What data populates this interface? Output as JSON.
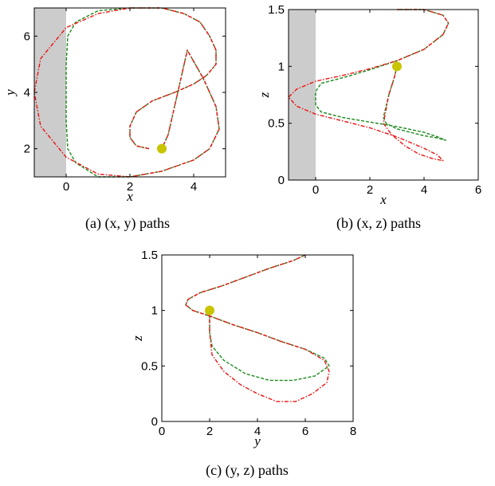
{
  "captions": {
    "a": "(a) (x, y) paths",
    "b": "(b) (x, z) paths",
    "c": "(c) (y, z) paths"
  },
  "colors": {
    "green_series": "#1a8a1a",
    "red_series": "#ee1111",
    "obstacle": "#cccccc",
    "marker": "#c8c400"
  },
  "chart_data": [
    {
      "id": "a",
      "type": "line",
      "title": "",
      "xlabel": "x",
      "ylabel": "y",
      "xlim": [
        -1,
        5
      ],
      "ylim": [
        1,
        7
      ],
      "xticks": [
        0,
        2,
        4
      ],
      "yticks": [
        2,
        4,
        6
      ],
      "shaded_region": {
        "x": [
          -1,
          0
        ]
      },
      "marker": {
        "x": 3,
        "y": 2
      },
      "series": [
        {
          "style": "green-dashed",
          "x": [
            2.6,
            2.2,
            2.0,
            2.0,
            2.2,
            2.7,
            3.4,
            4.0,
            4.4,
            4.7,
            4.7,
            4.5,
            4.2,
            3.7,
            3.0,
            2.0,
            1.0,
            0.3,
            0.05,
            0,
            0,
            0.05,
            0.3,
            1.0,
            2.0,
            3.0,
            4.0,
            4.5,
            4.8,
            4.7,
            4.3,
            3.8,
            3.2,
            3.0
          ],
          "y": [
            2.0,
            2.1,
            2.4,
            2.8,
            3.3,
            3.7,
            4.0,
            4.3,
            4.6,
            5.0,
            5.5,
            6.0,
            6.5,
            6.8,
            7.0,
            7.0,
            6.9,
            6.5,
            6.0,
            5.0,
            3.0,
            2.0,
            1.5,
            1.0,
            1.0,
            1.2,
            1.6,
            2.0,
            2.7,
            3.5,
            4.5,
            5.5,
            2.5,
            2.0
          ]
        },
        {
          "style": "red-dashdot",
          "x": [
            2.6,
            2.2,
            2.0,
            2.0,
            2.2,
            2.7,
            3.4,
            4.0,
            4.4,
            4.7,
            4.7,
            4.5,
            4.2,
            3.7,
            3.0,
            2.0,
            1.0,
            0,
            -0.8,
            -1.0,
            -0.8,
            0,
            1.0,
            2.0,
            3.0,
            4.0,
            4.5,
            4.8,
            4.7,
            4.3,
            3.8,
            3.2,
            3.0
          ],
          "y": [
            2.0,
            2.1,
            2.4,
            2.8,
            3.3,
            3.7,
            4.0,
            4.3,
            4.6,
            5.0,
            5.5,
            6.0,
            6.5,
            6.8,
            7.0,
            7.0,
            6.8,
            6.3,
            5.2,
            4.0,
            2.8,
            1.7,
            1.1,
            1.0,
            1.2,
            1.6,
            2.0,
            2.7,
            3.5,
            4.5,
            5.5,
            2.5,
            2.0
          ]
        }
      ]
    },
    {
      "id": "b",
      "type": "line",
      "title": "",
      "xlabel": "x",
      "ylabel": "z",
      "xlim": [
        -1,
        6
      ],
      "ylim": [
        0,
        1.5
      ],
      "xticks": [
        0,
        2,
        4,
        6
      ],
      "yticks": [
        0,
        0.5,
        1,
        1.5
      ],
      "shaded_region": {
        "x": [
          -1,
          0
        ]
      },
      "marker": {
        "x": 3,
        "y": 1
      },
      "series": [
        {
          "style": "green-dashed",
          "x": [
            3.0,
            2.9,
            2.7,
            2.5,
            2.6,
            3.0,
            3.5,
            4.0,
            4.5,
            4.8,
            4.5,
            4.0,
            3.0,
            2.0,
            1.0,
            0.2,
            0,
            0,
            0.2,
            1.0,
            2.0,
            3.0,
            4.0,
            4.7,
            4.9,
            4.7,
            4.0,
            3.0
          ],
          "y": [
            1.0,
            0.9,
            0.75,
            0.55,
            0.5,
            0.45,
            0.42,
            0.39,
            0.37,
            0.35,
            0.38,
            0.42,
            0.47,
            0.51,
            0.55,
            0.6,
            0.66,
            0.78,
            0.85,
            0.9,
            0.97,
            1.05,
            1.15,
            1.28,
            1.38,
            1.45,
            1.5,
            1.5
          ]
        },
        {
          "style": "red-dashdot",
          "x": [
            3.0,
            2.9,
            2.7,
            2.5,
            2.8,
            3.3,
            3.8,
            4.3,
            4.7,
            4.5,
            4.0,
            3.0,
            2.0,
            1.0,
            0,
            -0.7,
            -1.0,
            -0.7,
            0,
            1.0,
            2.0,
            3.0,
            4.0,
            4.7,
            4.9,
            4.7,
            4.0,
            3.0
          ],
          "y": [
            1.0,
            0.9,
            0.75,
            0.5,
            0.4,
            0.3,
            0.23,
            0.19,
            0.17,
            0.22,
            0.28,
            0.38,
            0.46,
            0.52,
            0.58,
            0.65,
            0.73,
            0.8,
            0.87,
            0.92,
            0.98,
            1.05,
            1.15,
            1.28,
            1.38,
            1.45,
            1.5,
            1.5
          ]
        }
      ]
    },
    {
      "id": "c",
      "type": "line",
      "title": "",
      "xlabel": "y",
      "ylabel": "z",
      "xlim": [
        0,
        8
      ],
      "ylim": [
        0,
        1.5
      ],
      "xticks": [
        0,
        2,
        4,
        6,
        8
      ],
      "yticks": [
        0,
        0.5,
        1,
        1.5
      ],
      "shaded_region": null,
      "marker": {
        "x": 2,
        "y": 1
      },
      "series": [
        {
          "style": "green-dashed",
          "x": [
            2.0,
            2.0,
            2.0,
            2.1,
            2.6,
            3.5,
            4.5,
            5.5,
            6.4,
            7.0,
            6.8,
            6.0,
            5.0,
            4.0,
            3.0,
            2.0,
            1.3,
            1.0,
            1.1,
            1.6,
            2.5,
            3.5,
            4.5,
            5.5,
            6.0
          ],
          "y": [
            1.0,
            0.88,
            0.8,
            0.68,
            0.55,
            0.43,
            0.37,
            0.37,
            0.41,
            0.5,
            0.57,
            0.65,
            0.72,
            0.8,
            0.87,
            0.95,
            1.0,
            1.05,
            1.1,
            1.16,
            1.22,
            1.3,
            1.38,
            1.45,
            1.5
          ]
        },
        {
          "style": "red-dashdot",
          "x": [
            2.0,
            2.0,
            2.0,
            2.1,
            2.6,
            3.3,
            4.0,
            4.8,
            5.6,
            6.3,
            6.9,
            7.0,
            6.8,
            6.0,
            5.0,
            4.0,
            3.0,
            2.0,
            1.3,
            1.0,
            1.1,
            1.6,
            2.5,
            3.5,
            4.5,
            5.5,
            6.0
          ],
          "y": [
            1.0,
            0.88,
            0.8,
            0.6,
            0.45,
            0.33,
            0.25,
            0.18,
            0.18,
            0.25,
            0.35,
            0.45,
            0.55,
            0.65,
            0.72,
            0.8,
            0.87,
            0.95,
            1.0,
            1.05,
            1.1,
            1.16,
            1.22,
            1.3,
            1.38,
            1.45,
            1.5
          ]
        }
      ]
    }
  ]
}
